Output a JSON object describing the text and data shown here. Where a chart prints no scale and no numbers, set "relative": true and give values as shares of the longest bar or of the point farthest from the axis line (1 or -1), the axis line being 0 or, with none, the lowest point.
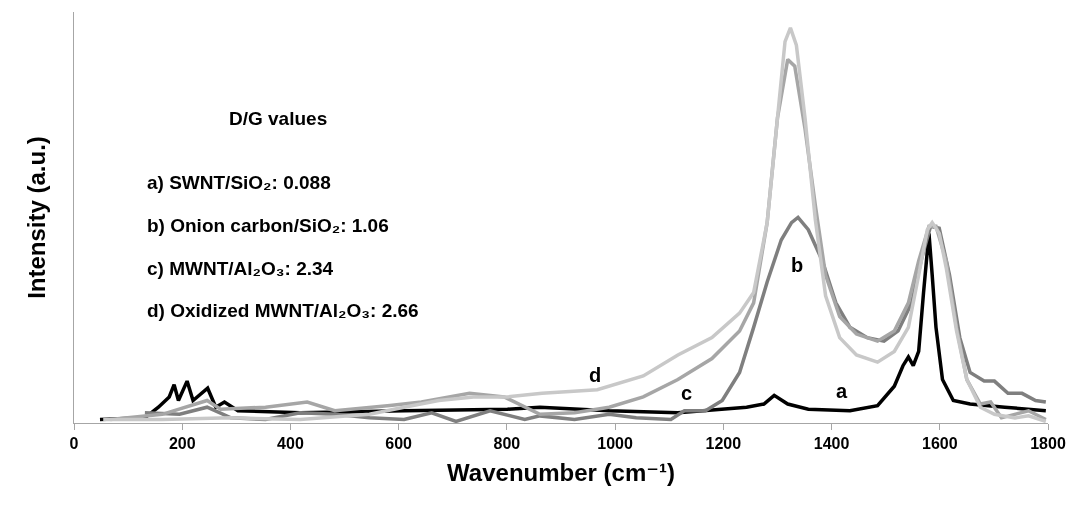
{
  "chart_data": {
    "type": "line",
    "relative": true,
    "xlabel": "Wavenumber (cm⁻¹)",
    "ylabel": "Intensity (a.u.)",
    "xlim": [
      0,
      1800
    ],
    "xticks": [
      0,
      200,
      400,
      600,
      800,
      1000,
      1200,
      1400,
      1600,
      1800
    ],
    "grid": false,
    "marker": "none",
    "line_style": "solid",
    "annotations": [
      "D/G values",
      "a) SWNT/SiO₂: 0.088",
      "b) Onion carbon/SiO₂: 1.06",
      "c) MWNT/Al₂O₃: 2.34",
      "d) Oxidized MWNT/Al₂O₃: 2.66",
      "a",
      "b",
      "c",
      "d"
    ],
    "series": [
      {
        "color": "#000000",
        "x": [
          48,
          131,
          156,
          176,
          185,
          193,
          209,
          220,
          247,
          262,
          278,
          303,
          418,
          610,
          801,
          861,
          989,
          1116,
          1243,
          1275,
          1294,
          1319,
          1357,
          1434,
          1485,
          1516,
          1532,
          1542,
          1551,
          1561,
          1570,
          1580,
          1586,
          1593,
          1605,
          1625,
          1656,
          1720,
          1796
        ],
        "values": [
          0.009,
          0.013,
          0.04,
          0.066,
          0.097,
          0.057,
          0.106,
          0.057,
          0.088,
          0.04,
          0.053,
          0.031,
          0.026,
          0.031,
          0.035,
          0.04,
          0.031,
          0.026,
          0.04,
          0.048,
          0.07,
          0.048,
          0.035,
          0.031,
          0.044,
          0.093,
          0.145,
          0.167,
          0.145,
          0.181,
          0.33,
          0.48,
          0.374,
          0.242,
          0.11,
          0.057,
          0.048,
          0.04,
          0.031
        ]
      },
      {
        "color": "#7f7f7f",
        "x": [
          131,
          195,
          246,
          290,
          354,
          418,
          482,
          546,
          610,
          661,
          706,
          769,
          833,
          861,
          925,
          989,
          1039,
          1103,
          1128,
          1167,
          1198,
          1230,
          1256,
          1281,
          1307,
          1326,
          1338,
          1357,
          1383,
          1408,
          1434,
          1466,
          1497,
          1523,
          1548,
          1567,
          1583,
          1599,
          1618,
          1637,
          1656,
          1682,
          1701,
          1726,
          1752,
          1777,
          1796
        ],
        "values": [
          0.026,
          0.022,
          0.04,
          0.013,
          0.009,
          0.026,
          0.022,
          0.013,
          0.009,
          0.026,
          0.004,
          0.031,
          0.009,
          0.018,
          0.009,
          0.022,
          0.013,
          0.009,
          0.031,
          0.031,
          0.057,
          0.128,
          0.242,
          0.357,
          0.463,
          0.507,
          0.52,
          0.489,
          0.41,
          0.304,
          0.242,
          0.216,
          0.207,
          0.233,
          0.304,
          0.419,
          0.498,
          0.493,
          0.374,
          0.216,
          0.128,
          0.106,
          0.106,
          0.075,
          0.075,
          0.057,
          0.053
        ]
      },
      {
        "color": "#a6a6a6",
        "x": [
          67,
          163,
          246,
          271,
          354,
          431,
          482,
          584,
          642,
          731,
          795,
          861,
          925,
          989,
          1052,
          1116,
          1179,
          1230,
          1256,
          1281,
          1300,
          1319,
          1332,
          1351,
          1370,
          1389,
          1415,
          1446,
          1485,
          1516,
          1542,
          1561,
          1580,
          1593,
          1612,
          1631,
          1650,
          1675,
          1694,
          1714,
          1764,
          1796
        ],
        "values": [
          0.009,
          0.022,
          0.057,
          0.035,
          0.04,
          0.053,
          0.031,
          0.044,
          0.053,
          0.075,
          0.066,
          0.022,
          0.026,
          0.04,
          0.066,
          0.11,
          0.163,
          0.233,
          0.304,
          0.507,
          0.771,
          0.92,
          0.903,
          0.744,
          0.551,
          0.374,
          0.269,
          0.225,
          0.207,
          0.233,
          0.304,
          0.41,
          0.498,
          0.498,
          0.41,
          0.242,
          0.11,
          0.048,
          0.053,
          0.013,
          0.031,
          0.009
        ]
      },
      {
        "color": "#c8c8c8",
        "x": [
          54,
          163,
          290,
          418,
          546,
          610,
          674,
          738,
          801,
          865,
          967,
          1052,
          1116,
          1179,
          1230,
          1256,
          1281,
          1300,
          1314,
          1324,
          1335,
          1351,
          1370,
          1389,
          1415,
          1446,
          1485,
          1516,
          1542,
          1561,
          1577,
          1586,
          1599,
          1612,
          1631,
          1650,
          1675,
          1701,
          1739,
          1764,
          1796
        ],
        "values": [
          0.009,
          0.009,
          0.013,
          0.009,
          0.022,
          0.04,
          0.057,
          0.066,
          0.066,
          0.075,
          0.084,
          0.119,
          0.172,
          0.216,
          0.278,
          0.33,
          0.507,
          0.771,
          0.965,
          1,
          0.956,
          0.771,
          0.515,
          0.322,
          0.216,
          0.172,
          0.154,
          0.181,
          0.242,
          0.374,
          0.489,
          0.507,
          0.48,
          0.392,
          0.233,
          0.11,
          0.04,
          0.022,
          0.013,
          0.018,
          0.004
        ]
      }
    ]
  }
}
